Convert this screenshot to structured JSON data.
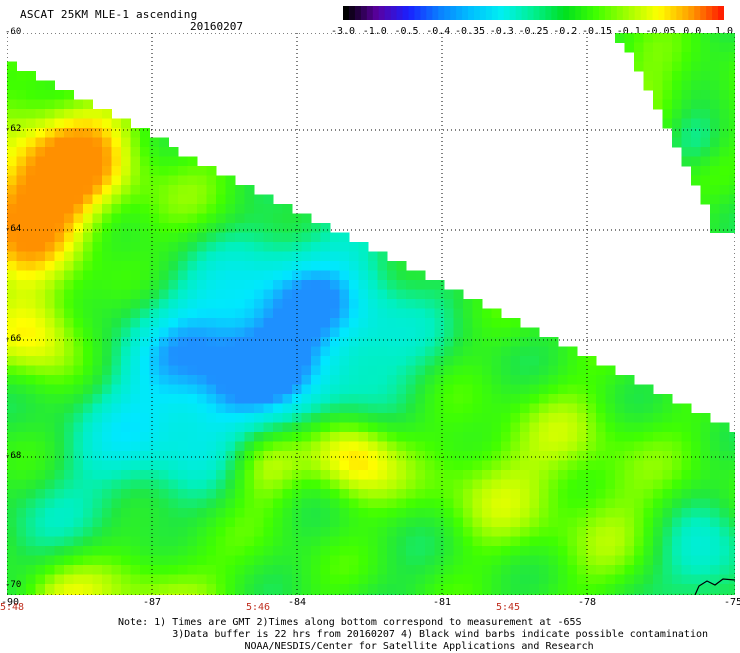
{
  "header": {
    "title": "ASCAT 25KM MLE-1 ascending",
    "date": "20160207"
  },
  "colorbar": {
    "labels": [
      "-3.0",
      "-1.0",
      "-0.5",
      "-0.4",
      "-0.35",
      "-0.3",
      "-0.25",
      "-0.2",
      "-0.15",
      "-0.1",
      "-0.05",
      "0.0",
      "1.0"
    ],
    "colors": [
      "#000000",
      "#5a00a0",
      "#1a20ff",
      "#0a80ff",
      "#00c0ff",
      "#00f0f0",
      "#00f090",
      "#00e020",
      "#40ff00",
      "#a0ff00",
      "#ffff00",
      "#ffa000",
      "#ff2000"
    ]
  },
  "map": {
    "lat_labels": [
      "-60",
      "-62",
      "-64",
      "-66",
      "-68",
      "-70"
    ],
    "lon_labels": [
      "-90",
      "-87",
      "-84",
      "-81",
      "-78",
      "-75"
    ],
    "time_labels": [
      "5:48",
      "5:46",
      "5:45"
    ]
  },
  "footer": {
    "note_line1": "Note: 1) Times are GMT 2)Times along bottom correspond to measurement at -65S",
    "note_line2": "3)Data buffer is 22 hrs from 20160207 4) Black wind barbs indicate possible contamination",
    "note_line3": "NOAA/NESDIS/Center for Satellite Applications and Research"
  }
}
